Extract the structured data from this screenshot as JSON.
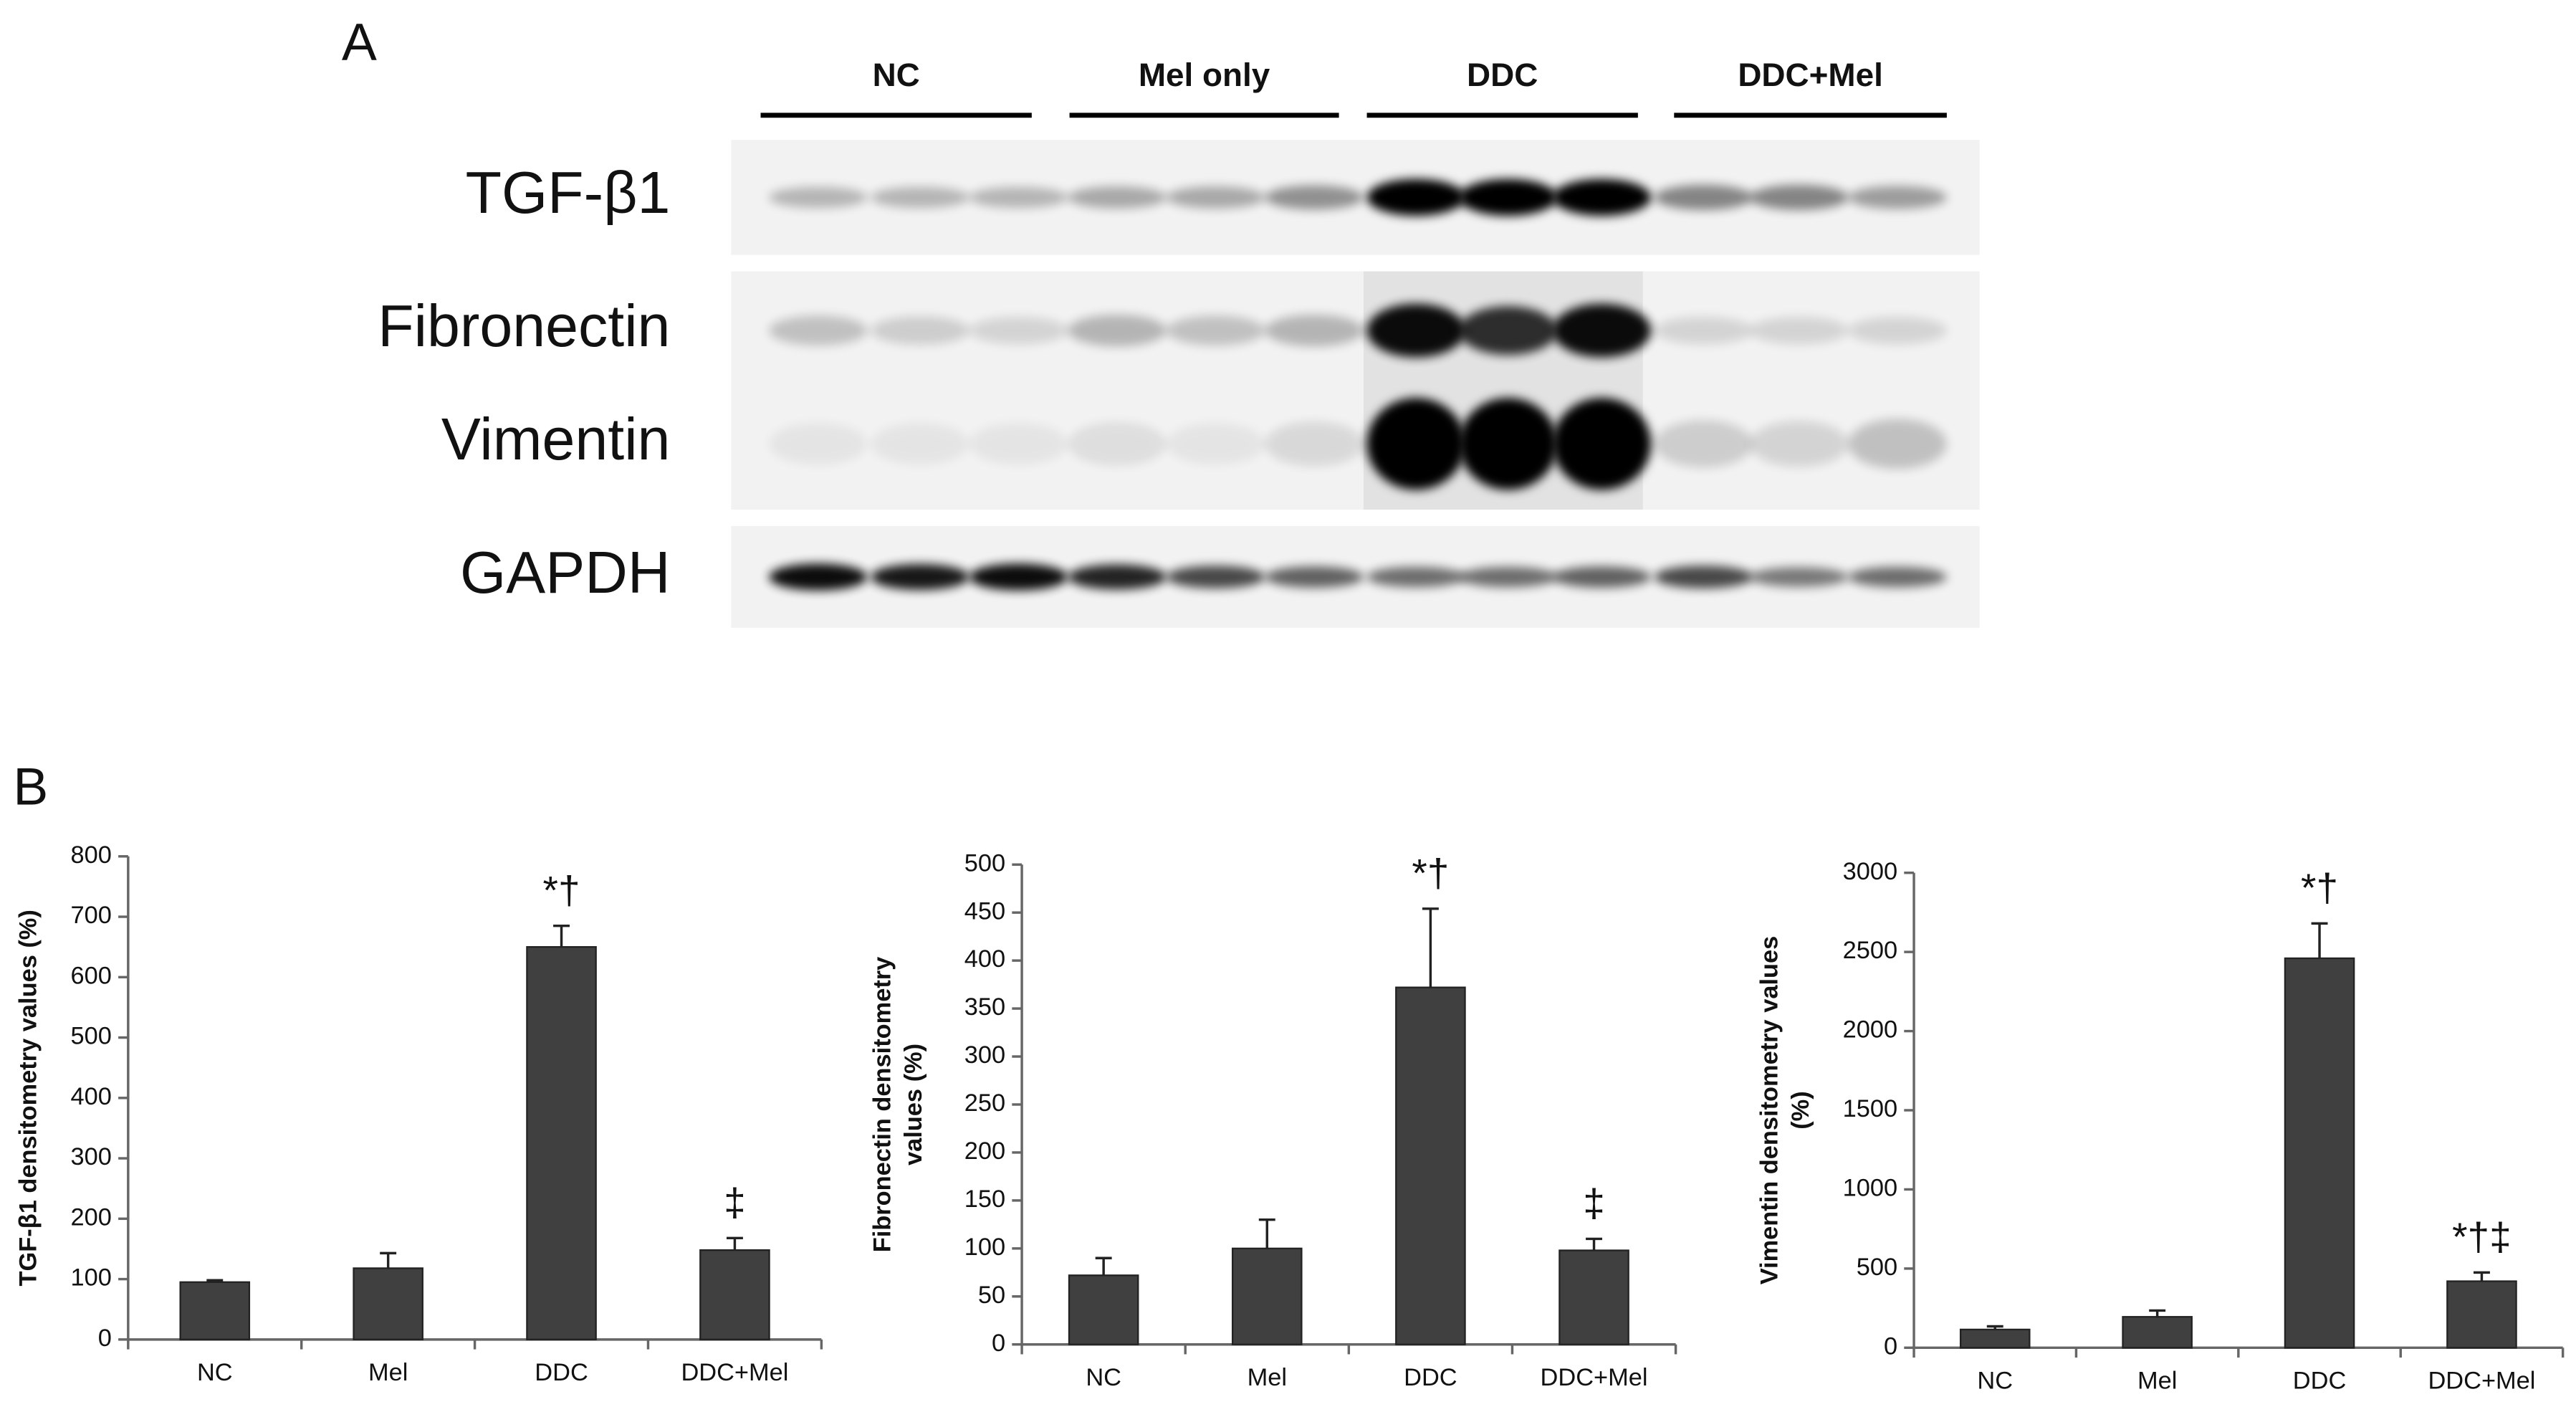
{
  "panel_a": {
    "label": "A",
    "groups": [
      "NC",
      "Mel only",
      "DDC",
      "DDC+Mel"
    ],
    "rows": [
      "TGF-β1",
      "Fibronectin",
      "Vimentin",
      "GAPDH"
    ]
  },
  "panel_b": {
    "label": "B"
  },
  "chart_data": [
    {
      "type": "bar",
      "ylabel": [
        "TGF-β1 densitometry values (%)"
      ],
      "categories": [
        "NC",
        "Mel",
        "DDC",
        "DDC+Mel"
      ],
      "values": [
        95,
        118,
        650,
        148
      ],
      "errors": [
        3,
        25,
        35,
        20
      ],
      "annotations": [
        null,
        null,
        "*†",
        "‡"
      ],
      "color": "#404040",
      "ylim": [
        0,
        800
      ],
      "yticks": [
        0,
        100,
        200,
        300,
        400,
        500,
        600,
        700,
        800
      ]
    },
    {
      "type": "bar",
      "ylabel": [
        "Fibronectin densitometry",
        "values (%)"
      ],
      "categories": [
        "NC",
        "Mel",
        "DDC",
        "DDC+Mel"
      ],
      "values": [
        72,
        100,
        372,
        98
      ],
      "errors": [
        18,
        30,
        82,
        12
      ],
      "annotations": [
        null,
        null,
        "*†",
        "‡"
      ],
      "color": "#404040",
      "ylim": [
        0,
        500
      ],
      "yticks": [
        0,
        50,
        100,
        150,
        200,
        250,
        300,
        350,
        400,
        450,
        500
      ]
    },
    {
      "type": "bar",
      "ylabel": [
        "Vimentin densitometry values",
        "(%)"
      ],
      "categories": [
        "NC",
        "Mel",
        "DDC",
        "DDC+Mel"
      ],
      "values": [
        115,
        195,
        2460,
        420
      ],
      "errors": [
        20,
        40,
        220,
        55
      ],
      "annotations": [
        null,
        null,
        "*†",
        "*†‡"
      ],
      "color": "#404040",
      "ylim": [
        0,
        3000
      ],
      "yticks": [
        0,
        500,
        1000,
        1500,
        2000,
        2500,
        3000
      ]
    }
  ]
}
